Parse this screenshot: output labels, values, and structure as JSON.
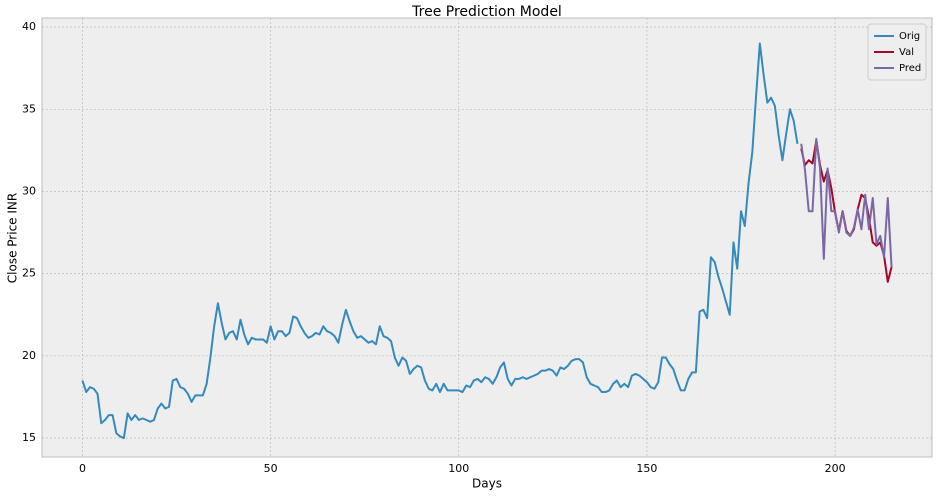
{
  "chart_data": {
    "type": "line",
    "title": "Tree Prediction Model",
    "x_label": "Days",
    "y_label": "Close Price INR",
    "xlim": [
      -10.75,
      225.75
    ],
    "xticks": [
      0,
      50,
      100,
      150,
      200
    ],
    "ylim": [
      13.85,
      40.55
    ],
    "yticks": [
      15,
      20,
      25,
      30,
      35,
      40
    ],
    "grid": true,
    "legend": "upper right",
    "series": [
      {
        "name": "Orig",
        "color": "#348ABD",
        "x": [
          0,
          1,
          2,
          3,
          4,
          5,
          6,
          7,
          8,
          9,
          10,
          11,
          12,
          13,
          14,
          15,
          16,
          17,
          18,
          19,
          20,
          21,
          22,
          23,
          24,
          25,
          26,
          27,
          28,
          29,
          30,
          31,
          32,
          33,
          34,
          35,
          36,
          37,
          38,
          39,
          40,
          41,
          42,
          43,
          44,
          45,
          46,
          47,
          48,
          49,
          50,
          51,
          52,
          53,
          54,
          55,
          56,
          57,
          58,
          59,
          60,
          61,
          62,
          63,
          64,
          65,
          66,
          67,
          68,
          69,
          70,
          71,
          72,
          73,
          74,
          75,
          76,
          77,
          78,
          79,
          80,
          81,
          82,
          83,
          84,
          85,
          86,
          87,
          88,
          89,
          90,
          91,
          92,
          93,
          94,
          95,
          96,
          97,
          98,
          99,
          100,
          101,
          102,
          103,
          104,
          105,
          106,
          107,
          108,
          109,
          110,
          111,
          112,
          113,
          114,
          115,
          116,
          117,
          118,
          119,
          120,
          121,
          122,
          123,
          124,
          125,
          126,
          127,
          128,
          129,
          130,
          131,
          132,
          133,
          134,
          135,
          136,
          137,
          138,
          139,
          140,
          141,
          142,
          143,
          144,
          145,
          146,
          147,
          148,
          149,
          150,
          151,
          152,
          153,
          154,
          155,
          156,
          157,
          158,
          159,
          160,
          161,
          162,
          163,
          164,
          165,
          166,
          167,
          168,
          169,
          170,
          171,
          172,
          173,
          174,
          175,
          176,
          177,
          178,
          179,
          180,
          181,
          182,
          183,
          184,
          185,
          186,
          187,
          188,
          189,
          190
        ],
        "values": [
          18.5,
          17.8,
          18.1,
          18.0,
          17.7,
          15.9,
          16.1,
          16.4,
          16.4,
          15.3,
          15.1,
          15.0,
          16.5,
          16.1,
          16.4,
          16.1,
          16.2,
          16.1,
          16.0,
          16.1,
          16.8,
          17.1,
          16.8,
          16.9,
          18.5,
          18.6,
          18.1,
          18.0,
          17.7,
          17.2,
          17.6,
          17.6,
          17.6,
          18.3,
          19.9,
          21.8,
          23.2,
          22.0,
          21.0,
          21.4,
          21.5,
          21.0,
          22.2,
          21.3,
          20.7,
          21.1,
          21.0,
          21.0,
          21.0,
          20.8,
          21.8,
          21.0,
          21.5,
          21.5,
          21.2,
          21.4,
          22.4,
          22.3,
          21.8,
          21.4,
          21.1,
          21.2,
          21.4,
          21.3,
          21.8,
          21.5,
          21.4,
          21.2,
          20.8,
          21.9,
          22.8,
          22.1,
          21.5,
          21.1,
          21.2,
          21.0,
          20.8,
          20.9,
          20.7,
          21.8,
          21.2,
          21.1,
          20.9,
          19.9,
          19.4,
          19.9,
          19.7,
          18.9,
          19.2,
          19.4,
          19.3,
          18.5,
          18.0,
          17.9,
          18.3,
          17.8,
          18.3,
          17.9,
          17.9,
          17.9,
          17.9,
          17.8,
          18.2,
          18.1,
          18.5,
          18.6,
          18.4,
          18.7,
          18.6,
          18.3,
          18.7,
          19.3,
          19.6,
          18.6,
          18.2,
          18.6,
          18.6,
          18.7,
          18.6,
          18.7,
          18.8,
          18.9,
          19.1,
          19.1,
          19.2,
          19.1,
          18.8,
          19.3,
          19.2,
          19.4,
          19.7,
          19.8,
          19.8,
          19.6,
          18.7,
          18.3,
          18.2,
          18.1,
          17.8,
          17.8,
          17.9,
          18.3,
          18.5,
          18.1,
          18.3,
          18.1,
          18.8,
          18.9,
          18.8,
          18.6,
          18.4,
          18.1,
          18.0,
          18.4,
          19.9,
          19.9,
          19.5,
          19.2,
          18.5,
          17.9,
          17.9,
          18.6,
          19.0,
          19.0,
          22.7,
          22.8,
          22.3,
          26.0,
          25.7,
          24.8,
          24.1,
          23.3,
          22.5,
          26.9,
          25.3,
          28.8,
          27.9,
          30.5,
          32.4,
          35.8,
          39.0,
          37.1,
          35.4,
          35.7,
          35.2,
          33.4,
          31.9,
          33.5,
          35.0,
          34.3,
          32.9
        ]
      },
      {
        "name": "Val",
        "color": "#A60628",
        "x": [
          191,
          192,
          193,
          194,
          195,
          196,
          197,
          198,
          199,
          200,
          201,
          202,
          203,
          204,
          205,
          206,
          207,
          208,
          209,
          210,
          211,
          212,
          213,
          214,
          215
        ],
        "values": [
          32.6,
          31.6,
          31.9,
          31.7,
          33.1,
          31.6,
          30.6,
          31.3,
          30.2,
          28.7,
          27.6,
          28.8,
          27.6,
          27.3,
          27.7,
          28.9,
          29.8,
          29.6,
          28.4,
          26.9,
          26.7,
          26.9,
          26.1,
          24.5,
          25.4
        ]
      },
      {
        "name": "Pred",
        "color": "#7A68A6",
        "x": [
          191,
          192,
          193,
          194,
          195,
          196,
          197,
          198,
          199,
          200,
          201,
          202,
          203,
          204,
          205,
          206,
          207,
          208,
          209,
          210,
          211,
          212,
          213,
          214,
          215
        ],
        "values": [
          32.9,
          31.3,
          28.8,
          28.8,
          33.2,
          31.4,
          25.9,
          31.4,
          28.8,
          28.8,
          27.5,
          28.8,
          27.5,
          27.3,
          27.8,
          28.9,
          27.7,
          29.8,
          27.7,
          29.6,
          26.8,
          27.3,
          26.0,
          29.6,
          25.4
        ]
      }
    ]
  }
}
